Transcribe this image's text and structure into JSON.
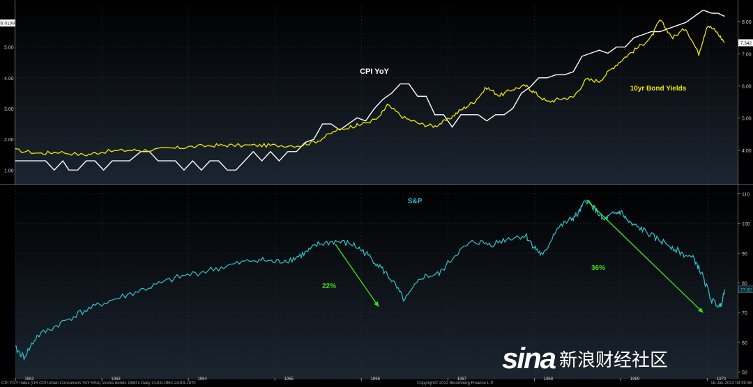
{
  "chart_data": [
    {
      "type": "line",
      "panel": "top",
      "title": "",
      "left_axis": {
        "ylim": [
          0.6,
          6.35
        ],
        "ticks": [
          "1.00",
          "2.00",
          "3.00",
          "4.00",
          "5.00"
        ],
        "last_value_box": "6.0109"
      },
      "right_axis": {
        "ylim": [
          3.0,
          8.5
        ],
        "ticks": [
          "4.00",
          "5.00",
          "6.00",
          "7.00",
          "8.00"
        ],
        "last_value_box": "7.342"
      },
      "grid": true,
      "series": [
        {
          "name": "CPI YoY",
          "axis": "left",
          "color": "#ffffff",
          "x": [
            1962.0,
            1962.35,
            1962.45,
            1962.55,
            1962.62,
            1962.72,
            1962.82,
            1962.92,
            1963.02,
            1963.12,
            1963.22,
            1963.32,
            1963.45,
            1963.55,
            1963.65,
            1963.75,
            1963.85,
            1963.95,
            1964.05,
            1964.15,
            1964.25,
            1964.35,
            1964.45,
            1964.55,
            1964.65,
            1964.75,
            1964.85,
            1964.95,
            1965.05,
            1965.15,
            1965.25,
            1965.35,
            1965.45,
            1965.55,
            1965.65,
            1965.75,
            1965.85,
            1965.95,
            1966.05,
            1966.15,
            1966.25,
            1966.35,
            1966.45,
            1966.55,
            1966.65,
            1966.75,
            1966.85,
            1966.95,
            1967.05,
            1967.15,
            1967.25,
            1967.35,
            1967.45,
            1967.55,
            1967.65,
            1967.75,
            1967.85,
            1967.95,
            1968.05,
            1968.15,
            1968.25,
            1968.35,
            1968.45,
            1968.55,
            1968.65,
            1968.75,
            1968.85,
            1968.95,
            1969.05,
            1969.15,
            1969.25,
            1969.35,
            1969.45,
            1969.55,
            1969.65,
            1969.75,
            1969.85,
            1969.95,
            1970.05,
            1970.12,
            1970.2
          ],
          "values": [
            1.3,
            1.3,
            1.0,
            1.3,
            1.0,
            1.0,
            1.3,
            1.3,
            1.0,
            1.3,
            1.3,
            1.3,
            1.6,
            1.6,
            1.3,
            1.3,
            1.3,
            1.0,
            1.3,
            1.0,
            1.3,
            1.3,
            1.0,
            1.0,
            1.3,
            1.6,
            1.3,
            1.6,
            1.3,
            1.6,
            1.6,
            1.9,
            2.0,
            2.5,
            2.5,
            2.3,
            2.5,
            2.7,
            2.6,
            3.0,
            3.3,
            3.5,
            3.8,
            3.8,
            3.4,
            3.4,
            2.8,
            2.8,
            2.4,
            2.8,
            2.8,
            2.8,
            2.6,
            2.8,
            2.8,
            3.0,
            3.5,
            3.7,
            4.0,
            4.0,
            4.1,
            4.1,
            4.2,
            4.7,
            4.8,
            4.9,
            4.8,
            5.0,
            5.0,
            5.3,
            5.4,
            5.5,
            5.5,
            5.6,
            5.7,
            5.8,
            6.0,
            6.2,
            6.1,
            6.1,
            6.0
          ]
        },
        {
          "name": "10yr Bond Yields",
          "axis": "right",
          "color": "#f2e600",
          "x": [
            1962.0,
            1962.3,
            1962.5,
            1962.8,
            1963.0,
            1963.3,
            1963.5,
            1963.8,
            1964.0,
            1964.3,
            1964.5,
            1964.8,
            1965.0,
            1965.3,
            1965.5,
            1965.7,
            1965.9,
            1966.0,
            1966.2,
            1966.3,
            1966.5,
            1966.7,
            1966.85,
            1967.0,
            1967.15,
            1967.3,
            1967.45,
            1967.6,
            1967.75,
            1967.9,
            1968.0,
            1968.15,
            1968.3,
            1968.45,
            1968.6,
            1968.75,
            1968.9,
            1969.05,
            1969.2,
            1969.35,
            1969.45,
            1969.6,
            1969.75,
            1969.9,
            1970.0,
            1970.1,
            1970.2
          ],
          "values": [
            4.0,
            3.9,
            3.95,
            3.85,
            3.95,
            4.0,
            4.0,
            4.05,
            4.1,
            4.15,
            4.15,
            4.15,
            4.15,
            4.15,
            4.3,
            4.6,
            4.75,
            4.8,
            5.0,
            5.4,
            5.0,
            4.8,
            4.75,
            4.95,
            5.25,
            5.5,
            5.95,
            5.7,
            5.9,
            6.0,
            5.8,
            5.5,
            5.6,
            5.65,
            6.2,
            6.15,
            6.55,
            6.9,
            7.2,
            7.5,
            8.05,
            7.5,
            7.8,
            7.0,
            7.9,
            7.7,
            7.35
          ]
        }
      ],
      "annotations": [
        "CPI YoY",
        "10yr Bond Yields"
      ]
    },
    {
      "type": "line",
      "panel": "bottom",
      "ylim": [
        48,
        112
      ],
      "y_ticks": [
        "50",
        "60",
        "70",
        "80",
        "90",
        "100",
        "110"
      ],
      "last_value_box": "77.82",
      "grid": true,
      "series": [
        {
          "name": "S&P",
          "color": "#2fc4cf",
          "x": [
            1962.0,
            1962.1,
            1962.25,
            1962.5,
            1962.75,
            1963.0,
            1963.3,
            1963.6,
            1963.9,
            1964.2,
            1964.5,
            1964.8,
            1965.0,
            1965.2,
            1965.35,
            1965.5,
            1965.7,
            1965.9,
            1966.05,
            1966.2,
            1966.35,
            1966.5,
            1966.7,
            1966.9,
            1967.1,
            1967.3,
            1967.5,
            1967.7,
            1967.9,
            1968.0,
            1968.1,
            1968.25,
            1968.4,
            1968.5,
            1968.6,
            1968.7,
            1968.8,
            1968.9,
            1969.0,
            1969.1,
            1969.25,
            1969.4,
            1969.55,
            1969.7,
            1969.85,
            1969.95,
            1970.05,
            1970.15,
            1970.2
          ],
          "values": [
            58,
            55,
            62,
            66,
            70,
            73,
            76,
            79,
            82,
            84,
            86,
            88,
            87,
            88,
            90,
            93,
            94,
            93,
            90,
            86,
            81,
            74,
            82,
            83,
            90,
            94,
            93,
            95,
            96,
            92,
            89,
            98,
            101,
            103,
            108,
            105,
            101,
            103,
            104,
            100,
            98,
            95,
            93,
            90,
            88,
            82,
            74,
            72,
            77.82
          ]
        }
      ],
      "annotations": [
        {
          "text": "22%",
          "color": "#3ddc1a",
          "arrow": {
            "from": [
              1965.7,
              93
            ],
            "to": [
              1966.2,
              72
            ]
          }
        },
        {
          "text": "36%",
          "color": "#3ddc1a",
          "arrow": {
            "from": [
              1968.6,
              108
            ],
            "to": [
              1969.95,
              70
            ]
          }
        }
      ]
    }
  ],
  "x_axis": {
    "ticks": [
      "1962",
      "1963",
      "1964",
      "1965",
      "1966",
      "1967",
      "1968",
      "1969",
      "1970"
    ]
  },
  "labels": {
    "cpi": "CPI YoY",
    "bond": "10yr Bond Yields",
    "sp": "S&P",
    "pct1": "22%",
    "pct2": "36%"
  },
  "footer": {
    "left": "CPI YOY Index (US CPI Urban Consumers YoY NSA) stocks bonds 1960's  Daily 31JUL1962-24JUL1970",
    "mid": "Copyright© 2022 Bloomberg Finance L.P.",
    "right": "18-Jun-2022 09:39:38"
  },
  "watermark": {
    "logo": "sina",
    "text": "新浪财经社区"
  }
}
